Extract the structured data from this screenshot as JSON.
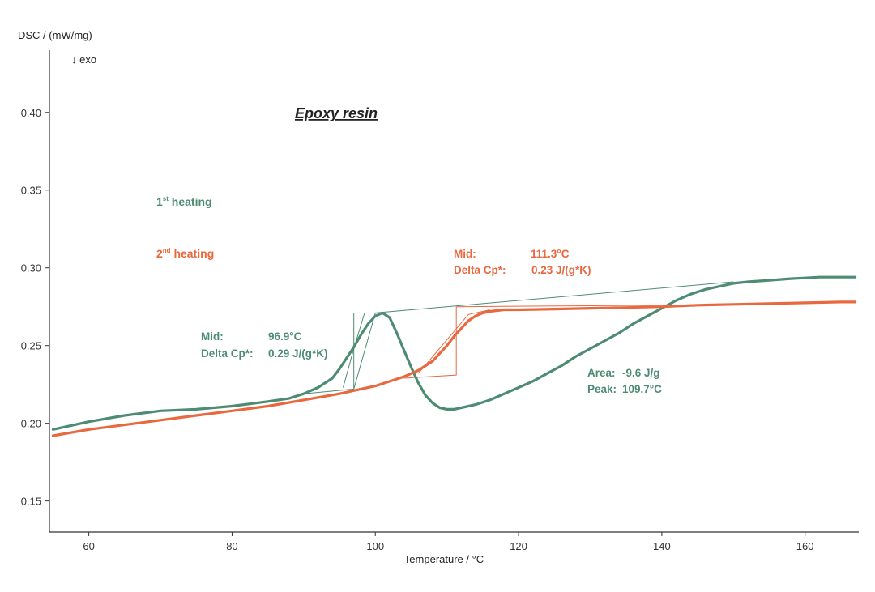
{
  "colors": {
    "first_heating": "#4e8b73",
    "second_heating": "#e8683f",
    "axis": "#333333"
  },
  "chart_data": {
    "type": "line",
    "title": "Epoxy resin",
    "xlabel": "Temperature / °C",
    "ylabel": "DSC / (mW/mg)",
    "exo_label": "↓ exo",
    "xlim": [
      54.5,
      167.5
    ],
    "ylim": [
      0.13,
      0.44
    ],
    "xticks": [
      60,
      80,
      100,
      120,
      140,
      160
    ],
    "yticks": [
      0.15,
      0.2,
      0.25,
      0.3,
      0.35,
      0.4
    ],
    "xtick_labels": [
      "60",
      "80",
      "100",
      "120",
      "140",
      "160"
    ],
    "ytick_labels": [
      "0.15",
      "0.20",
      "0.25",
      "0.30",
      "0.35",
      "0.40"
    ],
    "grid": false,
    "series": [
      {
        "name": "1st heating",
        "legend_main": "1",
        "legend_sup": "st",
        "legend_rest": " heating",
        "color": "#4e8b73",
        "x": [
          55,
          60,
          65,
          70,
          75,
          80,
          85,
          88,
          90,
          92,
          94,
          95,
          96,
          97,
          98,
          99,
          100,
          101,
          102,
          103,
          104,
          105,
          106,
          107,
          108,
          109,
          110,
          111,
          112,
          114,
          116,
          118,
          120,
          122,
          124,
          126,
          128,
          130,
          132,
          134,
          136,
          138,
          140,
          142,
          144,
          146,
          148,
          150,
          152,
          155,
          158,
          160,
          162,
          165,
          167
        ],
        "y": [
          0.196,
          0.201,
          0.205,
          0.208,
          0.209,
          0.211,
          0.214,
          0.216,
          0.219,
          0.223,
          0.229,
          0.235,
          0.242,
          0.249,
          0.257,
          0.264,
          0.269,
          0.271,
          0.268,
          0.258,
          0.247,
          0.236,
          0.226,
          0.218,
          0.213,
          0.21,
          0.209,
          0.209,
          0.21,
          0.212,
          0.215,
          0.219,
          0.223,
          0.227,
          0.232,
          0.237,
          0.243,
          0.248,
          0.253,
          0.258,
          0.264,
          0.269,
          0.274,
          0.279,
          0.283,
          0.286,
          0.288,
          0.29,
          0.291,
          0.292,
          0.293,
          0.2935,
          0.294,
          0.294,
          0.294
        ]
      },
      {
        "name": "2nd heating",
        "legend_main": "2",
        "legend_sup": "nd",
        "legend_rest": " heating",
        "color": "#e8683f",
        "x": [
          55,
          60,
          65,
          70,
          75,
          80,
          85,
          90,
          95,
          100,
          104,
          106,
          108,
          109,
          110,
          111,
          112,
          113,
          114,
          115,
          116,
          117,
          118,
          120,
          125,
          130,
          135,
          140,
          145,
          150,
          155,
          160,
          165,
          167
        ],
        "y": [
          0.192,
          0.196,
          0.199,
          0.202,
          0.205,
          0.208,
          0.211,
          0.215,
          0.219,
          0.224,
          0.23,
          0.234,
          0.24,
          0.245,
          0.25,
          0.256,
          0.261,
          0.266,
          0.269,
          0.271,
          0.272,
          0.2725,
          0.273,
          0.273,
          0.2735,
          0.274,
          0.2745,
          0.275,
          0.276,
          0.2765,
          0.277,
          0.2775,
          0.278,
          0.278
        ]
      }
    ],
    "constructions": [
      {
        "series": 0,
        "points": [
          [
            90,
            0.219
          ],
          [
            97,
            0.222
          ],
          [
            100,
            0.271
          ],
          [
            150,
            0.291
          ]
        ]
      },
      {
        "series": 0,
        "points": [
          [
            97,
            0.222
          ],
          [
            97,
            0.271
          ]
        ]
      },
      {
        "series": 0,
        "points": [
          [
            95.5,
            0.223
          ],
          [
            97,
            0.248
          ],
          [
            98.5,
            0.271
          ]
        ]
      },
      {
        "series": 1,
        "points": [
          [
            104,
            0.229
          ],
          [
            111.3,
            0.231
          ],
          [
            111.3,
            0.275
          ]
        ]
      },
      {
        "series": 1,
        "points": [
          [
            106,
            0.232
          ],
          [
            113,
            0.27
          ],
          [
            116,
            0.273
          ]
        ]
      },
      {
        "series": 1,
        "points": [
          [
            111.3,
            0.275
          ],
          [
            140,
            0.276
          ]
        ]
      }
    ],
    "annotations": [
      {
        "series": 0,
        "lines": [
          {
            "label": "Mid:",
            "value": "96.9°C"
          },
          {
            "label": "Delta Cp*:",
            "value": "0.29 J/(g*K)"
          }
        ]
      },
      {
        "series": 1,
        "lines": [
          {
            "label": "Mid:",
            "value": "111.3°C"
          },
          {
            "label": "Delta Cp*:",
            "value": "0.23 J/(g*K)"
          }
        ]
      },
      {
        "series": 0,
        "lines": [
          {
            "label": "Area:",
            "value": "-9.6 J/g"
          },
          {
            "label": "Peak:",
            "value": "109.7°C"
          }
        ]
      }
    ]
  }
}
